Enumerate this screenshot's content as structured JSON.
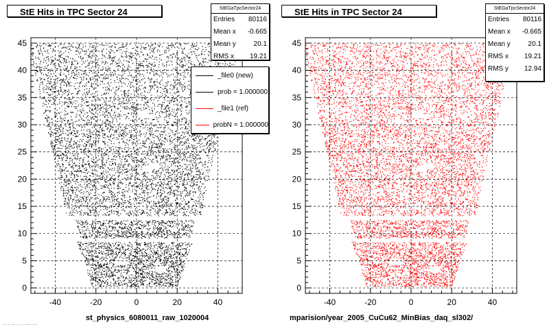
{
  "chart_data": [
    {
      "type": "scatter",
      "title": "StE Hits in TPC Sector 24",
      "xlim": [
        -52,
        52
      ],
      "ylim": [
        -1,
        46
      ],
      "xticks": [
        -40,
        -20,
        0,
        20,
        40
      ],
      "yticks": [
        0,
        5,
        10,
        15,
        20,
        25,
        30,
        35,
        40,
        45
      ],
      "grid": true,
      "marker_color": "#000000",
      "xlabel": "st_physics_6080011_raw_1020004",
      "stats": {
        "header": "StEGaTpcSector24",
        "rows": [
          {
            "label": "Entries",
            "value": "80116"
          },
          {
            "label": "Mean x",
            "value": "-0.665"
          },
          {
            "label": "Mean y",
            "value": "20.1"
          },
          {
            "label": "RMS x",
            "value": "19.21"
          }
        ]
      },
      "legend": {
        "placement": "top-right",
        "entries": [
          {
            "label": "_file0 (new)",
            "color": "#000000"
          },
          {
            "label": "prob = 1.000000",
            "color": "#000000"
          },
          {
            "label": "_file1 (ref)",
            "color": "#ff0000"
          },
          {
            "label": "probN = 1.000000",
            "color": "#ff0000"
          }
        ]
      }
    },
    {
      "type": "scatter",
      "title": "StE Hits in TPC Sector 24",
      "xlim": [
        -52,
        52
      ],
      "ylim": [
        -1,
        46
      ],
      "xticks": [
        -40,
        -20,
        0,
        20,
        40
      ],
      "yticks": [
        0,
        5,
        10,
        15,
        20,
        25,
        30,
        35,
        40,
        45
      ],
      "grid": true,
      "marker_color": "#ff0000",
      "xlabel": "mparision/year_2005_CuCu62_MinBias_daq_sl302/",
      "stats": {
        "header": "StEGaTpcSector24",
        "rows": [
          {
            "label": "Entries",
            "value": "80116"
          },
          {
            "label": "Mean x",
            "value": "-0.665"
          },
          {
            "label": "Mean y",
            "value": "20.1"
          },
          {
            "label": "RMS x",
            "value": "19.21"
          },
          {
            "label": "RMS y",
            "value": "12.94"
          }
        ]
      }
    }
  ],
  "footer_text": "... ... ... .. ... ...... ...."
}
